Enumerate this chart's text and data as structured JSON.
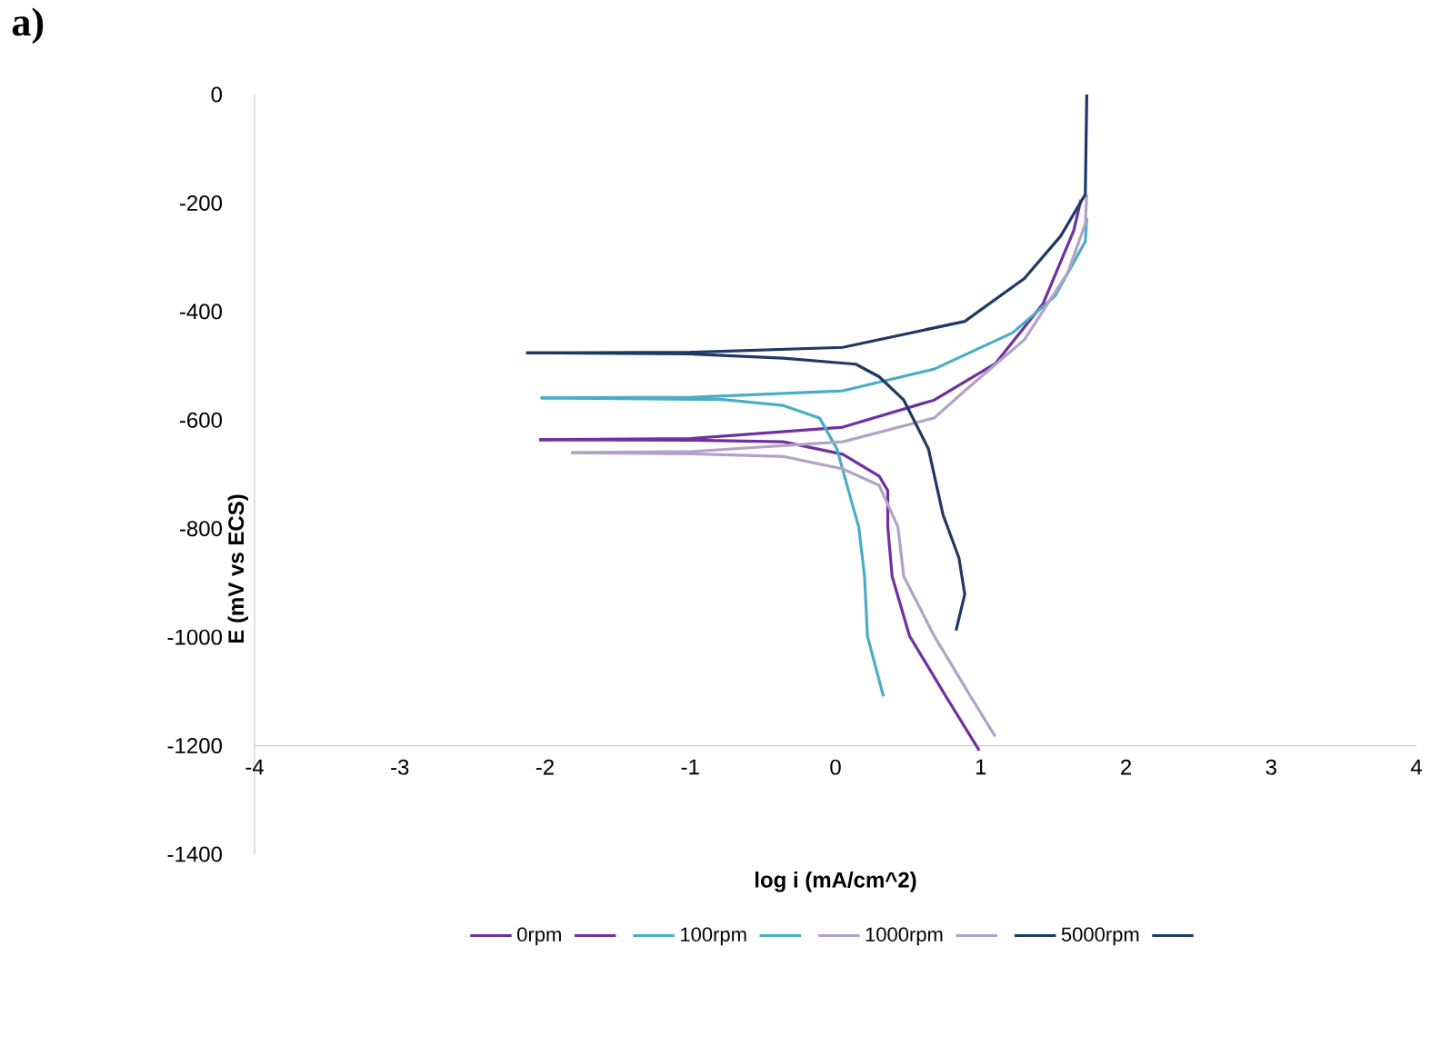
{
  "chart_data": {
    "type": "line",
    "title": "a)",
    "xlabel": "log  i (mA/cm^2)",
    "ylabel": "E (mV vs ECS)",
    "xlim": [
      -4,
      4
    ],
    "xticks": [
      -4,
      -3,
      -2,
      -1,
      0,
      1,
      2,
      3,
      4
    ],
    "ylim": [
      -1400,
      0
    ],
    "yticks": [
      -1400,
      -1200,
      -1000,
      -800,
      -600,
      -400,
      -200,
      0
    ],
    "grid": false,
    "legend": "bottom",
    "marker": "none",
    "line_style": "solid",
    "series": [
      {
        "name": "0rpm",
        "color": "#7030a0",
        "x": [
          -2.04,
          -1,
          0.05,
          0.68,
          1.1,
          1.43,
          1.64,
          1.69
        ],
        "values": [
          -636,
          -634,
          -613,
          -563,
          -496,
          -385,
          -251,
          -194
        ]
      },
      {
        "color": "#7030a0",
        "x": [
          -2.04,
          -1,
          -0.36,
          0.05,
          0.3,
          0.36,
          0.36,
          0.39,
          0.51,
          0.76,
          0.99
        ],
        "values": [
          -636,
          -637,
          -640,
          -663,
          -703,
          -730,
          -797,
          -888,
          -998,
          -1109,
          -1209
        ]
      },
      {
        "name": "100rpm",
        "color": "#4bacc6",
        "x": [
          -2.03,
          -1,
          0.05,
          0.68,
          1.22,
          1.51,
          1.72,
          1.73
        ],
        "values": [
          -559,
          -558,
          -546,
          -506,
          -439,
          -372,
          -271,
          -228
        ]
      },
      {
        "color": "#4bacc6",
        "x": [
          -2.03,
          -0.78,
          -0.36,
          -0.11,
          0.01,
          0.1,
          0.16,
          0.2,
          0.22,
          0.33
        ],
        "values": [
          -559,
          -562,
          -573,
          -596,
          -653,
          -740,
          -797,
          -888,
          -998,
          -1109
        ]
      },
      {
        "name": "1000rpm",
        "color": "#b3a2c7",
        "x": [
          -1.82,
          -1,
          0.05,
          0.68,
          0.89,
          1.3,
          1.6,
          1.72,
          1.73
        ],
        "values": [
          -660,
          -658,
          -640,
          -596,
          -546,
          -452,
          -328,
          -238,
          -184
        ]
      },
      {
        "color": "#b3a2c7",
        "x": [
          -1.82,
          -1,
          -0.36,
          0.05,
          0.3,
          0.43,
          0.47,
          0.68,
          0.93,
          1.1
        ],
        "values": [
          -660,
          -662,
          -667,
          -690,
          -720,
          -797,
          -888,
          -998,
          -1109,
          -1183
        ]
      },
      {
        "name": "5000rpm",
        "color": "#1f3864",
        "x": [
          -2.13,
          -1,
          0.05,
          0.89,
          1.3,
          1.55,
          1.72,
          1.73
        ],
        "values": [
          -476,
          -475,
          -466,
          -418,
          -339,
          -261,
          -184,
          0
        ]
      },
      {
        "color": "#1f3864",
        "x": [
          -2.13,
          -1,
          -0.36,
          0.14,
          0.3,
          0.47,
          0.64,
          0.74,
          0.85,
          0.89,
          0.83
        ],
        "values": [
          -476,
          -478,
          -486,
          -497,
          -520,
          -563,
          -653,
          -774,
          -854,
          -921,
          -988
        ]
      }
    ]
  }
}
